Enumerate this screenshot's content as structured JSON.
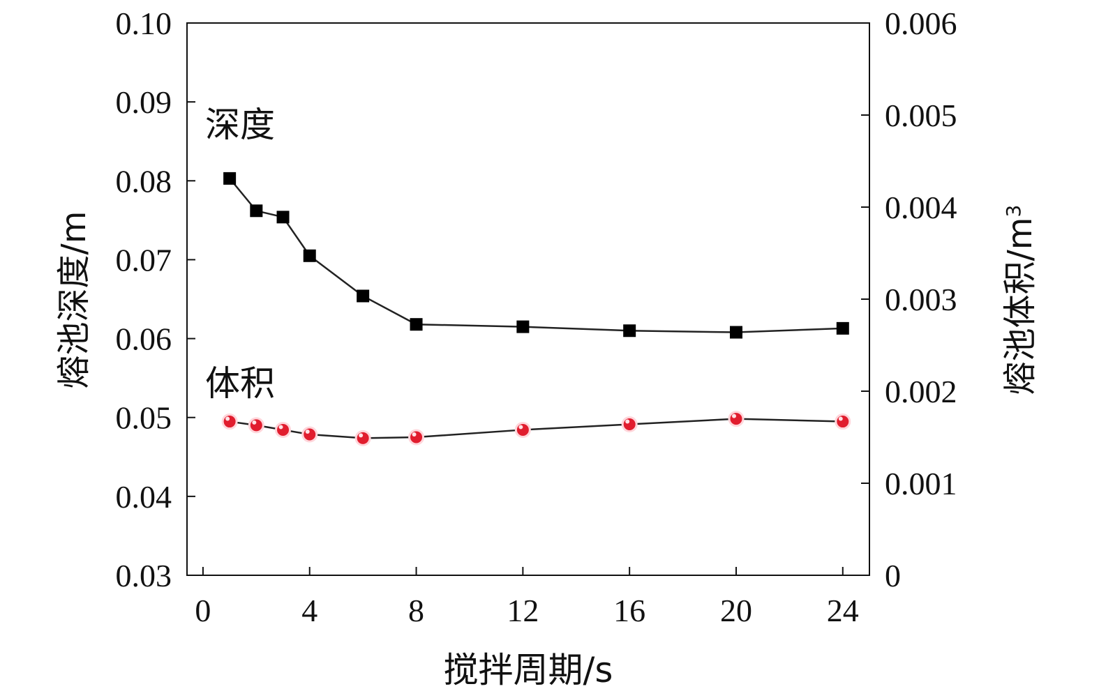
{
  "chart_data": {
    "type": "line",
    "xlabel": "搅拌周期/s",
    "ylabel_left": "熔池深度/m",
    "ylabel_right_base": "熔池体积/m",
    "ylabel_right_superscript": "3",
    "x_ticks": [
      "0",
      "4",
      "8",
      "12",
      "16",
      "20",
      "24"
    ],
    "y_left_ticks": [
      "0.03",
      "0.04",
      "0.05",
      "0.06",
      "0.07",
      "0.08",
      "0.09",
      "0.10"
    ],
    "y_right_ticks": [
      "0",
      "0.001",
      "0.002",
      "0.003",
      "0.004",
      "0.005",
      "0.006"
    ],
    "xlim": [
      -0.6,
      25
    ],
    "ylim_left": [
      0.03,
      0.1
    ],
    "ylim_right": [
      0,
      0.006
    ],
    "grid": false,
    "series": [
      {
        "name": "深度",
        "axis": "left",
        "marker": "square",
        "color": "#000000",
        "line_color": "#222222",
        "x": [
          1,
          2,
          3,
          4,
          6,
          8,
          12,
          16,
          20,
          24
        ],
        "values": [
          0.0803,
          0.0762,
          0.0754,
          0.0705,
          0.0654,
          0.0618,
          0.0615,
          0.061,
          0.0608,
          0.0613
        ]
      },
      {
        "name": "体积",
        "axis": "right",
        "marker": "circle",
        "color": "#e11d2e",
        "line_color": "#222222",
        "x": [
          1,
          2,
          3,
          4,
          6,
          8,
          12,
          16,
          20,
          24
        ],
        "values": [
          0.00167,
          0.00163,
          0.00158,
          0.00153,
          0.00149,
          0.0015,
          0.00158,
          0.00164,
          0.0017,
          0.00167
        ]
      }
    ]
  }
}
